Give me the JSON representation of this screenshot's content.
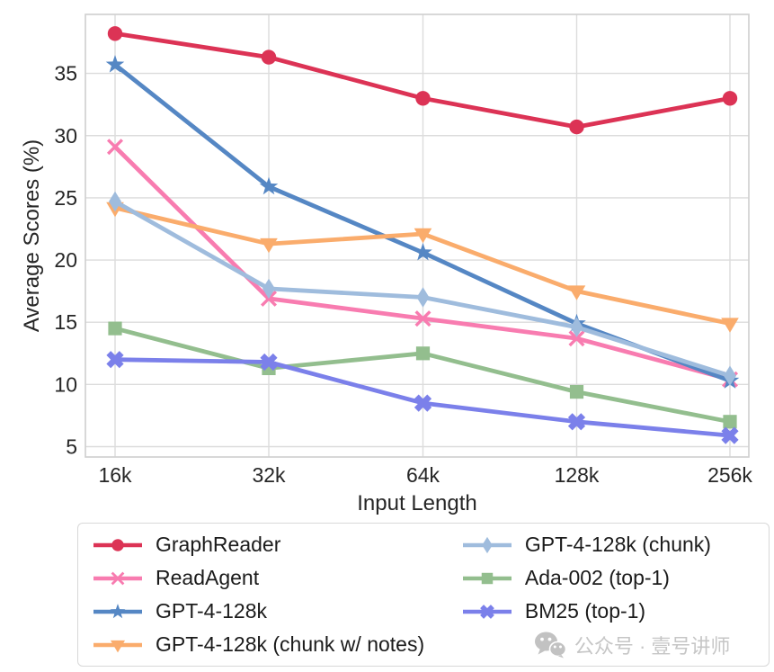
{
  "chart_data": {
    "type": "line",
    "title": "",
    "xlabel": "Input Length",
    "ylabel": "Average Scores (%)",
    "categories": [
      "16k",
      "32k",
      "64k",
      "128k",
      "256k"
    ],
    "yticks": [
      5,
      10,
      15,
      20,
      25,
      30,
      35
    ],
    "ylim": [
      4.2,
      39.7
    ],
    "grid": true,
    "series": [
      {
        "name": "GraphReader",
        "color": "#dc3355",
        "marker": "circle",
        "values": [
          38.2,
          36.3,
          33.0,
          30.7,
          33.0
        ]
      },
      {
        "name": "ReadAgent",
        "color": "#f87cb0",
        "marker": "x-thin",
        "values": [
          29.1,
          16.9,
          15.3,
          13.7,
          10.4
        ]
      },
      {
        "name": "GPT-4-128k",
        "color": "#5587c4",
        "marker": "star",
        "values": [
          35.7,
          25.9,
          20.6,
          14.9,
          10.3
        ]
      },
      {
        "name": "GPT-4-128k (chunk w/ notes)",
        "color": "#faac6c",
        "marker": "triangle-down",
        "values": [
          24.2,
          21.3,
          22.1,
          17.5,
          14.9
        ]
      },
      {
        "name": "GPT-4-128k (chunk)",
        "color": "#9fbcdd",
        "marker": "diamond",
        "values": [
          24.7,
          17.7,
          17.0,
          14.6,
          10.7
        ]
      },
      {
        "name": "Ada-002 (top-1)",
        "color": "#93be8e",
        "marker": "square",
        "values": [
          14.5,
          11.3,
          12.5,
          9.4,
          7.0
        ]
      },
      {
        "name": "BM25 (top-1)",
        "color": "#7b80ea",
        "marker": "x-thick",
        "values": [
          12.0,
          11.8,
          8.5,
          7.0,
          5.9
        ]
      }
    ],
    "legend": {
      "position": "bottom",
      "columns": 2,
      "order_left": [
        "GraphReader",
        "ReadAgent",
        "GPT-4-128k",
        "GPT-4-128k (chunk w/ notes)"
      ],
      "order_right": [
        "GPT-4-128k (chunk)",
        "Ada-002 (top-1)",
        "BM25 (top-1)"
      ]
    }
  },
  "watermark": {
    "icon": "wechat-icon",
    "text": "公众号 · 壹号讲师",
    "color": "#c6c6c6"
  }
}
